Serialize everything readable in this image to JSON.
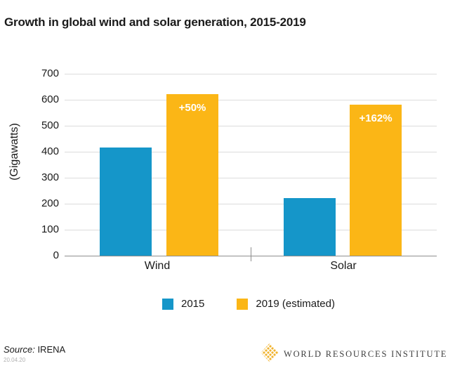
{
  "title": "Growth in global wind and solar generation, 2015-2019",
  "chart_data": {
    "type": "bar",
    "categories": [
      "Wind",
      "Solar"
    ],
    "series": [
      {
        "name": "2015",
        "color": "#1596C9",
        "values": [
          415,
          222
        ]
      },
      {
        "name": "2019 (estimated)",
        "color": "#FBB616",
        "values": [
          623,
          580
        ]
      }
    ],
    "bar_labels": {
      "series_index": 1,
      "labels": [
        "+50%",
        "+162%"
      ]
    },
    "ylabel": "(Gigawatts)",
    "ylim": [
      0,
      700
    ],
    "yticks": [
      0,
      100,
      200,
      300,
      400,
      500,
      600,
      700
    ],
    "grid": true,
    "legend_position": "bottom"
  },
  "colors": {
    "bar_2015": "#1596C9",
    "bar_2019": "#FBB616",
    "gridline": "#dcdcdc",
    "axis": "#8e8e8e",
    "text": "#1a1a1a",
    "logo_gold": "#F0B32E",
    "logo_text": "#3f3f3f"
  },
  "footer": {
    "source_label": "Source:",
    "source_value": "IRENA",
    "date": "20.04.20",
    "logo_text": "WORLD RESOURCES INSTITUTE"
  }
}
